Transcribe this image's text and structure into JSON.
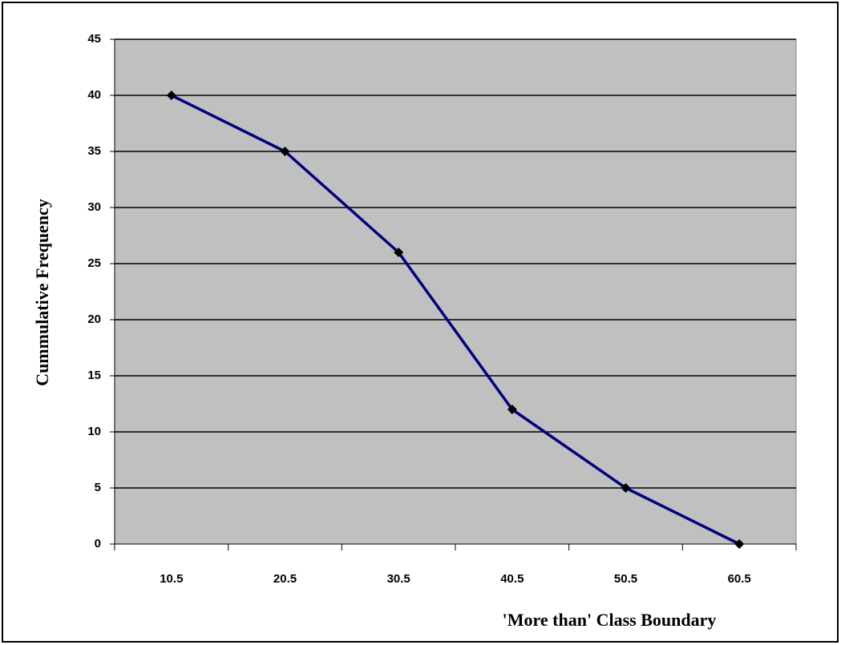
{
  "chart_data": {
    "type": "line",
    "x_label": "'More than' Class Boundary",
    "y_label": "Cummulative Frequency",
    "categories": [
      "10.5",
      "20.5",
      "30.5",
      "40.5",
      "50.5",
      "60.5"
    ],
    "series": [
      {
        "color": "#000080",
        "marker_color": "#000000",
        "values": [
          40,
          35,
          26,
          12,
          5,
          0
        ]
      }
    ],
    "ylim": [
      0,
      45
    ],
    "yticks": [
      0,
      5,
      10,
      15,
      20,
      25,
      30,
      35,
      40,
      45
    ],
    "grid": true,
    "plot_background": "#c0c0c0"
  }
}
